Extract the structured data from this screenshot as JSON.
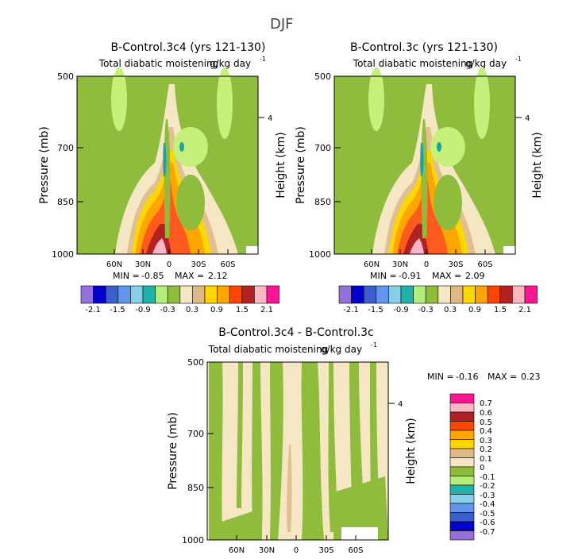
{
  "page_title": "DJF",
  "colors": {
    "neg_green": "#8fbc3c",
    "neg_light": "#c6f07a",
    "neutral": "#f5e6c4",
    "tan": "#e0c090",
    "orange_y": "#ffd700",
    "orange": "#ffa500",
    "red_o": "#ff5a1e",
    "teal": "#20a0a0",
    "pink": "#ffb6c8",
    "dark_red": "#b22222"
  },
  "chart_data": [
    {
      "id": "panel1",
      "type": "contour",
      "title": "B-Control.3c4 (yrs 121-130)",
      "subtitle": "Total diabatic moistening",
      "units": "g/kg day",
      "units_exp": "-1",
      "ylabel": "Pressure (mb)",
      "y2label": "Height (km)",
      "y_ticks": [
        "500",
        "700",
        "850",
        "1000"
      ],
      "y2_ticks": [
        "4"
      ],
      "x_ticks": [
        "60N",
        "30N",
        "0",
        "30S",
        "60S"
      ],
      "min_label": "MIN =",
      "min_value": "-0.85",
      "max_label": "MAX =",
      "max_value": "2.12",
      "colorbar_levels": [
        "-2.1",
        "-1.5",
        "-0.9",
        "-0.3",
        "0.3",
        "0.9",
        "1.5",
        "2.1"
      ]
    },
    {
      "id": "panel2",
      "type": "contour",
      "title": "B-Control.3c (yrs 121-130)",
      "subtitle": "Total diabatic moistening",
      "units": "g/kg day",
      "units_exp": "-1",
      "ylabel": "Pressure (mb)",
      "y2label": "Height (km)",
      "y_ticks": [
        "500",
        "700",
        "850",
        "1000"
      ],
      "y2_ticks": [
        "4"
      ],
      "x_ticks": [
        "60N",
        "30N",
        "0",
        "30S",
        "60S"
      ],
      "min_label": "MIN =",
      "min_value": "-0.91",
      "max_label": "MAX =",
      "max_value": "2.09",
      "colorbar_levels": [
        "-2.1",
        "-1.5",
        "-0.9",
        "-0.3",
        "0.3",
        "0.9",
        "1.5",
        "2.1"
      ]
    },
    {
      "id": "panel3",
      "type": "contour",
      "title": "B-Control.3c4 - B-Control.3c",
      "subtitle": "Total diabatic moistening",
      "units": "g/kg day",
      "units_exp": "-1",
      "ylabel": "Pressure (mb)",
      "y2label": "Height (km)",
      "y_ticks": [
        "500",
        "700",
        "850",
        "1000"
      ],
      "y2_ticks": [
        "4"
      ],
      "x_ticks": [
        "60N",
        "30N",
        "0",
        "30S",
        "60S"
      ],
      "min_label": "MIN =",
      "min_value": "-0.16",
      "max_label": "MAX =",
      "max_value": "0.23",
      "colorbar_levels": [
        "0.7",
        "0.6",
        "0.5",
        "0.4",
        "0.3",
        "0.2",
        "0.1",
        "0",
        "-0.1",
        "-0.2",
        "-0.3",
        "-0.4",
        "-0.5",
        "-0.6",
        "-0.7"
      ]
    }
  ]
}
